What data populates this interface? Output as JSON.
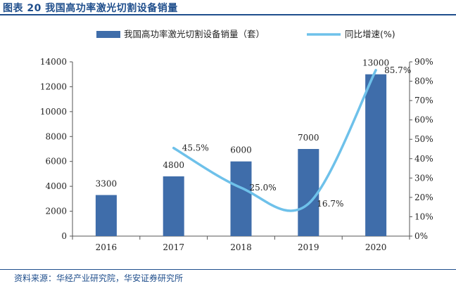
{
  "figure_title": "图表 20 我国高功率激光切割设备销量",
  "source_note": "资料来源：华经产业研究院，华安证券研究所",
  "colors": {
    "bar": "#3F6DAA",
    "line": "#6EC1EA",
    "title": "#1F4E8C"
  },
  "chart_data": {
    "type": "bar",
    "categories": [
      "2016",
      "2017",
      "2018",
      "2019",
      "2020"
    ],
    "series": [
      {
        "name": "我国高功率激光切割设备销量（套）",
        "type": "bar",
        "axis": "left",
        "values": [
          3300,
          4800,
          6000,
          7000,
          13000
        ],
        "labels": [
          "3300",
          "4800",
          "6000",
          "7000",
          "13000"
        ]
      },
      {
        "name": "同比增速(%)",
        "type": "line",
        "axis": "right",
        "values": [
          null,
          45.5,
          25.0,
          16.7,
          85.7
        ],
        "labels": [
          "",
          "45.5%",
          "25.0%",
          "16.7%",
          "85.7%"
        ]
      }
    ],
    "y_left": {
      "min": 0,
      "max": 14000,
      "ticks": [
        "0",
        "2000",
        "4000",
        "6000",
        "8000",
        "10000",
        "12000",
        "14000"
      ]
    },
    "y_right": {
      "min": 0,
      "max": 90,
      "ticks": [
        "0%",
        "10%",
        "20%",
        "30%",
        "40%",
        "50%",
        "60%",
        "70%",
        "80%",
        "90%"
      ]
    },
    "legend_position": "top",
    "grid": false
  }
}
